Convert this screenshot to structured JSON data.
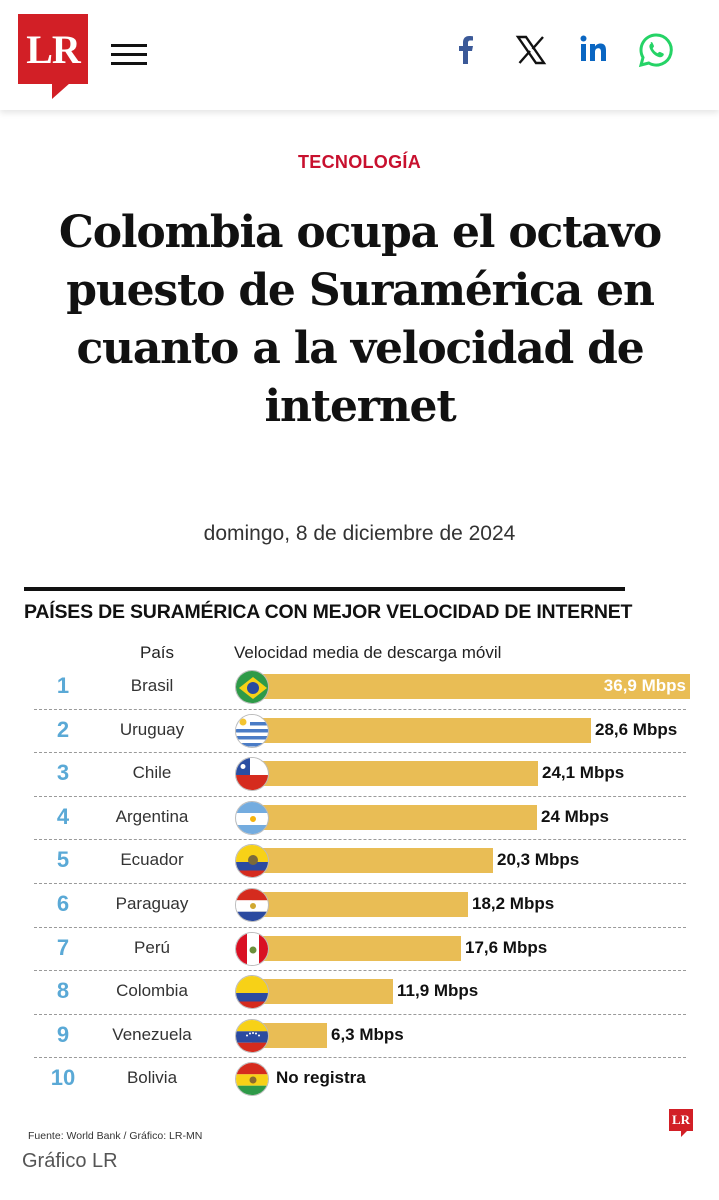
{
  "header": {
    "logo_text": "LR",
    "social": [
      "facebook-icon",
      "x-icon",
      "linkedin-icon",
      "whatsapp-icon"
    ],
    "brand_color": "#d21f26"
  },
  "article": {
    "section": "TECNOLOGÍA",
    "headline": "Colombia ocupa el octavo puesto de Suramérica en cuanto a la velocidad de internet",
    "date": "domingo, 8 de diciembre de 2024"
  },
  "chart_data": {
    "type": "bar",
    "title": "PAÍSES DE SURAMÉRICA CON MEJOR VELOCIDAD DE INTERNET",
    "col_country": "País",
    "col_value": "Velocidad media de descarga móvil",
    "bar_color": "#e9bd55",
    "rank_color": "#5aa9d6",
    "rows": [
      {
        "rank": "1",
        "country": "Brasil",
        "value": 36.9,
        "label": "36,9 Mbps"
      },
      {
        "rank": "2",
        "country": "Uruguay",
        "value": 28.6,
        "label": "28,6 Mbps"
      },
      {
        "rank": "3",
        "country": "Chile",
        "value": 24.1,
        "label": "24,1 Mbps"
      },
      {
        "rank": "4",
        "country": "Argentina",
        "value": 24,
        "label": "24 Mbps"
      },
      {
        "rank": "5",
        "country": "Ecuador",
        "value": 20.3,
        "label": "20,3 Mbps"
      },
      {
        "rank": "6",
        "country": "Paraguay",
        "value": 18.2,
        "label": "18,2 Mbps"
      },
      {
        "rank": "7",
        "country": "Perú",
        "value": 17.6,
        "label": "17,6 Mbps"
      },
      {
        "rank": "8",
        "country": "Colombia",
        "value": 11.9,
        "label": "11,9 Mbps"
      },
      {
        "rank": "9",
        "country": "Venezuela",
        "value": 6.3,
        "label": "6,3 Mbps"
      },
      {
        "rank": "10",
        "country": "Bolivia",
        "value": null,
        "label": "No registra"
      }
    ],
    "source": "Fuente: World Bank / Gráfico: LR-MN",
    "mini_logo": "LR"
  },
  "caption": "Gráfico LR"
}
